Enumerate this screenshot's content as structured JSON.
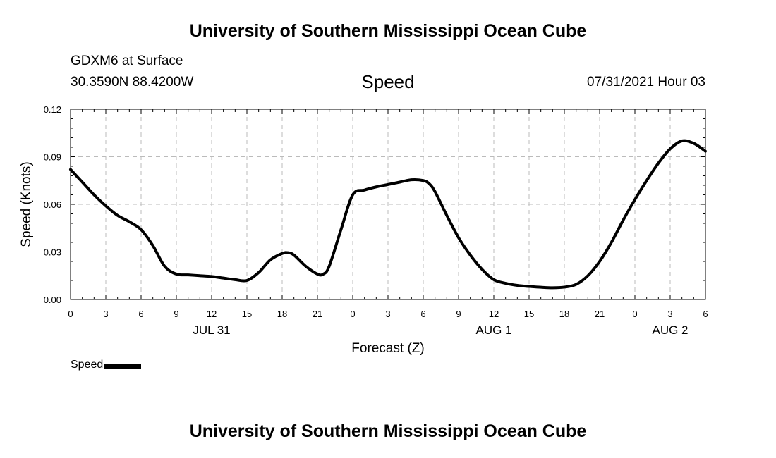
{
  "header": {
    "title_top": "University of Southern Mississippi Ocean Cube",
    "station": "GDXM6 at Surface",
    "coords": "30.3590N  88.4200W",
    "datetime": "07/31/2021 Hour 03"
  },
  "footer": {
    "title_bottom": "University of Southern Mississippi Ocean Cube"
  },
  "legend": {
    "label": "Speed",
    "placement": "bottom-left"
  },
  "chart_data": {
    "type": "line",
    "title": "Speed",
    "xlabel": "Forecast (Z)",
    "ylabel": "Speed (Knots)",
    "xlim": [
      0,
      54
    ],
    "ylim": [
      0,
      0.12
    ],
    "grid": true,
    "line_color": "#000000",
    "x_ticks": [
      {
        "x": 0,
        "label": "0"
      },
      {
        "x": 3,
        "label": "3"
      },
      {
        "x": 6,
        "label": "6"
      },
      {
        "x": 9,
        "label": "9"
      },
      {
        "x": 12,
        "label": "12"
      },
      {
        "x": 15,
        "label": "15"
      },
      {
        "x": 18,
        "label": "18"
      },
      {
        "x": 21,
        "label": "21"
      },
      {
        "x": 24,
        "label": "0"
      },
      {
        "x": 27,
        "label": "3"
      },
      {
        "x": 30,
        "label": "6"
      },
      {
        "x": 33,
        "label": "9"
      },
      {
        "x": 36,
        "label": "12"
      },
      {
        "x": 39,
        "label": "15"
      },
      {
        "x": 42,
        "label": "18"
      },
      {
        "x": 45,
        "label": "21"
      },
      {
        "x": 48,
        "label": "0"
      },
      {
        "x": 51,
        "label": "3"
      },
      {
        "x": 54,
        "label": "6"
      }
    ],
    "day_labels": [
      {
        "x": 12,
        "label": "JUL 31"
      },
      {
        "x": 36,
        "label": "AUG 1"
      },
      {
        "x": 51,
        "label": "AUG 2"
      }
    ],
    "y_ticks": [
      {
        "y": 0,
        "label": "0.00"
      },
      {
        "y": 0.03,
        "label": "0.03"
      },
      {
        "y": 0.06,
        "label": "0.06"
      },
      {
        "y": 0.09,
        "label": "0.09"
      },
      {
        "y": 0.12,
        "label": "0.12"
      }
    ],
    "series": [
      {
        "name": "Speed",
        "x": [
          0,
          1,
          2,
          3,
          4,
          5,
          6,
          7,
          8,
          9,
          10,
          11,
          12,
          13,
          14,
          15,
          16,
          17,
          18,
          18.5,
          19,
          20,
          21,
          21.5,
          22,
          23,
          24,
          25,
          26,
          27,
          28,
          29,
          30,
          30.5,
          31,
          32,
          33,
          34,
          35,
          36,
          37,
          38,
          39,
          40,
          41,
          42,
          43,
          44,
          45,
          46,
          47,
          48,
          49,
          50,
          51,
          52,
          53,
          54
        ],
        "y": [
          0.082,
          0.074,
          0.066,
          0.059,
          0.053,
          0.049,
          0.044,
          0.034,
          0.021,
          0.016,
          0.0155,
          0.015,
          0.0145,
          0.0135,
          0.0125,
          0.012,
          0.017,
          0.025,
          0.029,
          0.0295,
          0.028,
          0.021,
          0.016,
          0.016,
          0.021,
          0.044,
          0.066,
          0.069,
          0.071,
          0.0725,
          0.074,
          0.0755,
          0.075,
          0.073,
          0.068,
          0.053,
          0.039,
          0.028,
          0.019,
          0.0125,
          0.0102,
          0.0089,
          0.0082,
          0.0077,
          0.0074,
          0.0078,
          0.0095,
          0.015,
          0.024,
          0.036,
          0.05,
          0.063,
          0.075,
          0.086,
          0.095,
          0.1,
          0.0985,
          0.0935
        ]
      }
    ]
  }
}
